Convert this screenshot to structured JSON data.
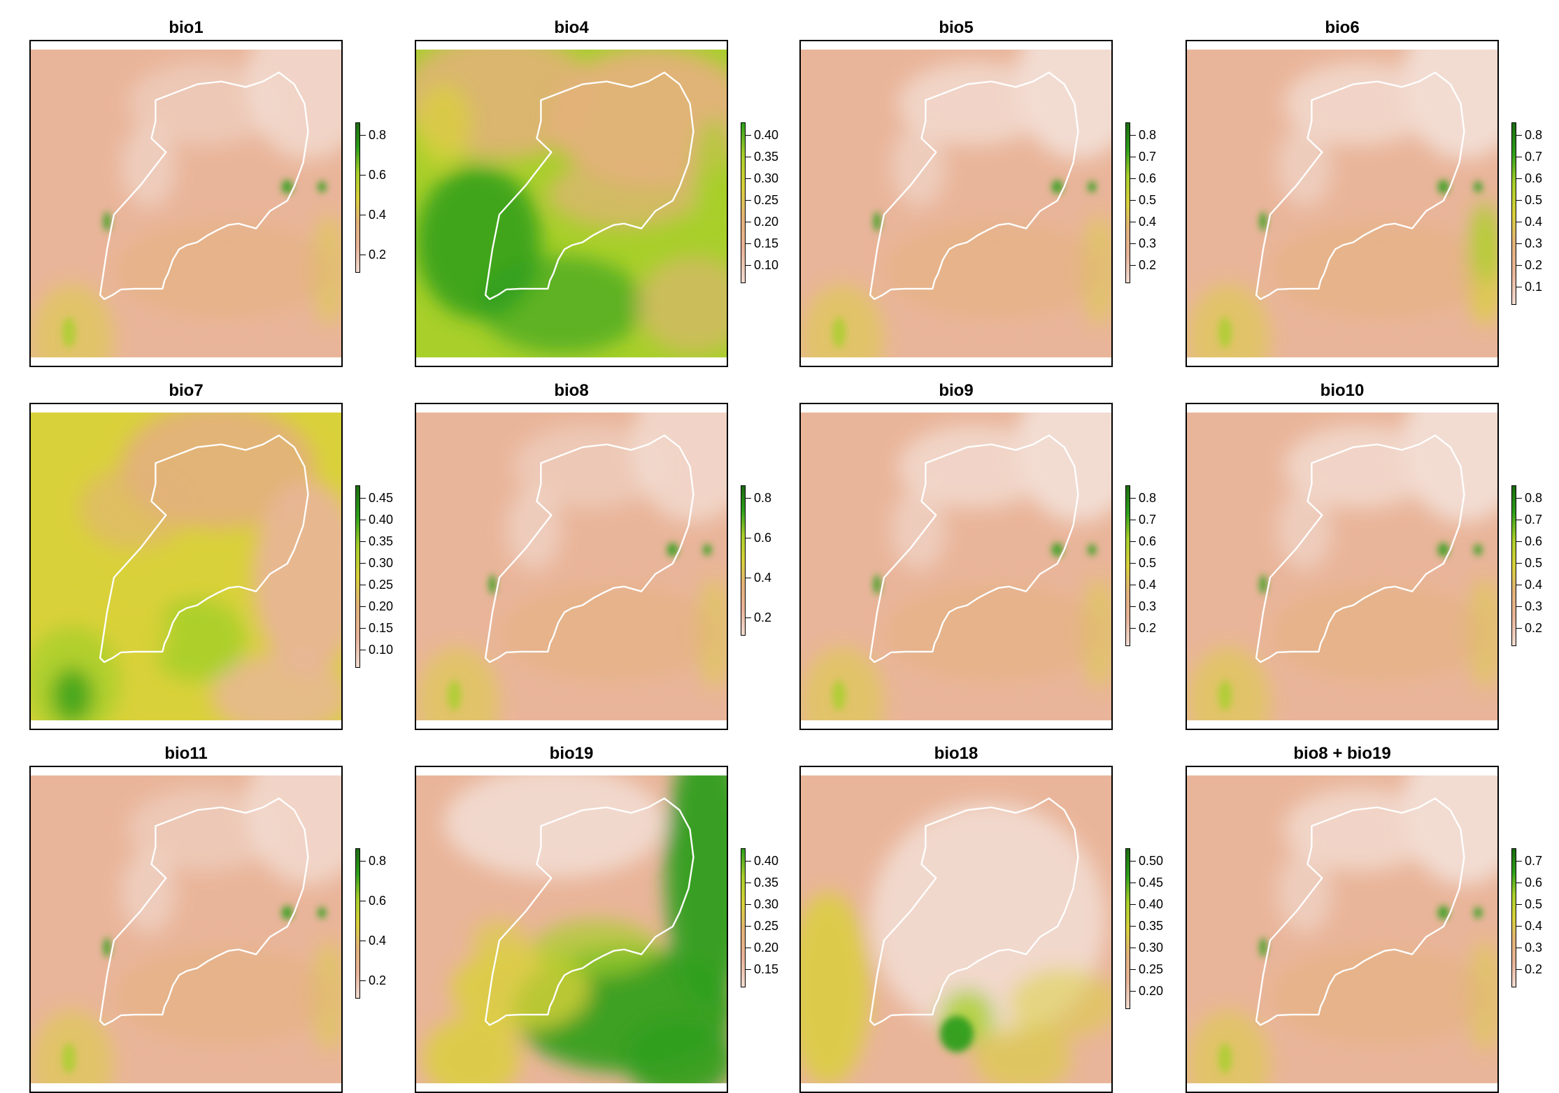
{
  "figure": {
    "panels": [
      {
        "title": "bio1",
        "scheme": "s1",
        "legend": [
          "0.8",
          "0.6",
          "0.4",
          "0.2"
        ]
      },
      {
        "title": "bio4",
        "scheme": "s4",
        "legend": [
          "0.40",
          "0.35",
          "0.30",
          "0.25",
          "0.20",
          "0.15",
          "0.10"
        ]
      },
      {
        "title": "bio5",
        "scheme": "s5",
        "legend": [
          "0.8",
          "0.7",
          "0.6",
          "0.5",
          "0.4",
          "0.3",
          "0.2"
        ]
      },
      {
        "title": "bio6",
        "scheme": "s6",
        "legend": [
          "0.8",
          "0.7",
          "0.6",
          "0.5",
          "0.4",
          "0.3",
          "0.2",
          "0.1"
        ]
      },
      {
        "title": "bio7",
        "scheme": "s7",
        "legend": [
          "0.45",
          "0.40",
          "0.35",
          "0.30",
          "0.25",
          "0.20",
          "0.15",
          "0.10"
        ]
      },
      {
        "title": "bio8",
        "scheme": "s1",
        "legend": [
          "0.8",
          "0.6",
          "0.4",
          "0.2"
        ]
      },
      {
        "title": "bio9",
        "scheme": "s5",
        "legend": [
          "0.8",
          "0.7",
          "0.6",
          "0.5",
          "0.4",
          "0.3",
          "0.2"
        ]
      },
      {
        "title": "bio10",
        "scheme": "s5",
        "legend": [
          "0.8",
          "0.7",
          "0.6",
          "0.5",
          "0.4",
          "0.3",
          "0.2"
        ]
      },
      {
        "title": "bio11",
        "scheme": "s1",
        "legend": [
          "0.8",
          "0.6",
          "0.4",
          "0.2"
        ]
      },
      {
        "title": "bio19",
        "scheme": "s19",
        "legend": [
          "0.40",
          "0.35",
          "0.30",
          "0.25",
          "0.20",
          "0.15"
        ]
      },
      {
        "title": "bio18",
        "scheme": "s18",
        "legend": [
          "0.50",
          "0.45",
          "0.40",
          "0.35",
          "0.30",
          "0.25",
          "0.20"
        ]
      },
      {
        "title": "bio8 + bio19",
        "scheme": "s5",
        "legend": [
          "0.7",
          "0.6",
          "0.5",
          "0.4",
          "0.3",
          "0.2"
        ]
      }
    ],
    "colors": {
      "salmon": "#e9b59a",
      "pale": "#f2dcd2",
      "tan": "#e3b27a",
      "yellow": "#d9d13a",
      "lime": "#a8cf2a",
      "green": "#2e9e1b",
      "dark_green": "#1c6a12",
      "border": "#ffffff"
    }
  }
}
